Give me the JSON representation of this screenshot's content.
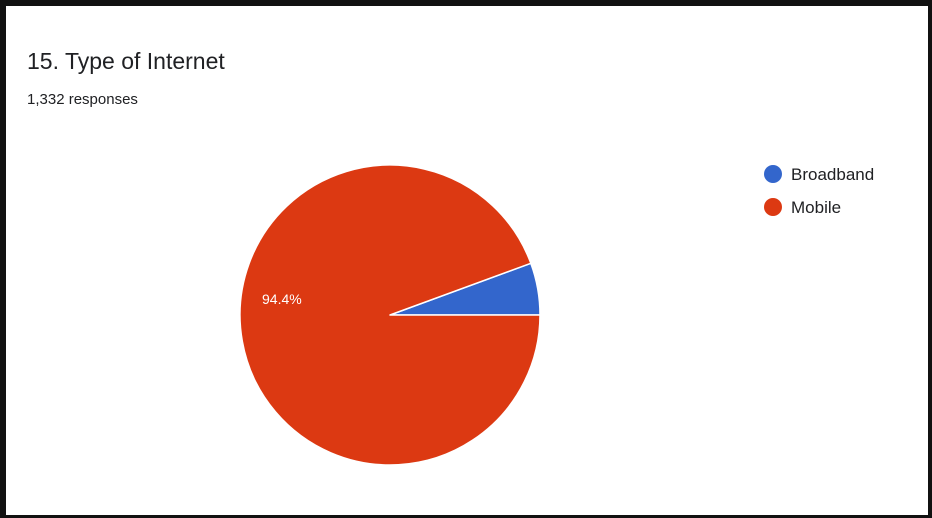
{
  "card": {
    "title": "15. Type of Internet",
    "responses": "1,332 responses"
  },
  "chart_data": {
    "type": "pie",
    "categories": [
      "Broadband",
      "Mobile"
    ],
    "values": [
      5.6,
      94.4
    ],
    "units": "percent",
    "slice_labels": [
      "",
      "94.4%"
    ],
    "colors": [
      "#3366cc",
      "#dc3912"
    ],
    "legend_position": "right",
    "start_angle": "east, counter-clockwise",
    "title": "15. Type of Internet"
  }
}
